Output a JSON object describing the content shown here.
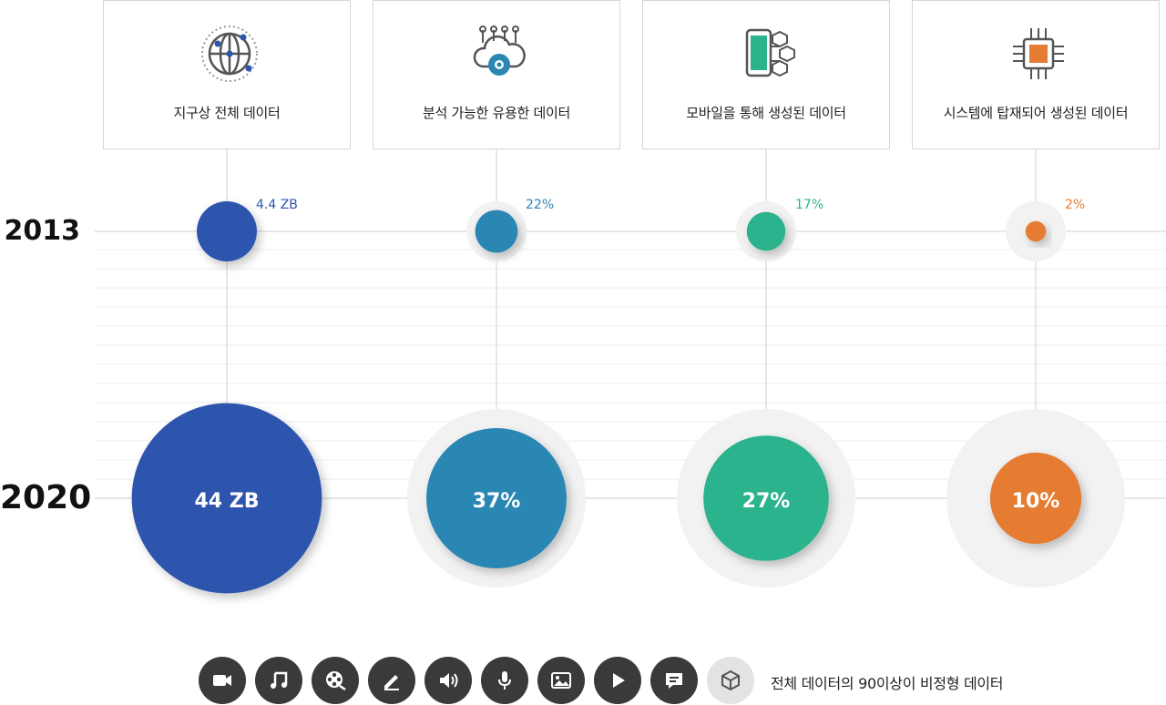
{
  "categories": [
    {
      "label": "지구상 전체 데이터",
      "icon": "globe-network-icon",
      "color": "#2d55ad",
      "v2013_label": "4.4 ZB",
      "v2020_label": "44 ZB"
    },
    {
      "label": "분석 가능한 유용한 데이터",
      "icon": "cloud-gear-icon",
      "color": "#2b86b3",
      "v2013_label": "22%",
      "v2020_label": "37%"
    },
    {
      "label": "모바일을 통해 생성된 데이터",
      "icon": "mobile-blocks-icon",
      "color": "#2bb38c",
      "v2013_label": "17%",
      "v2020_label": "27%"
    },
    {
      "label": "시스템에 탑재되어 생성된 데이터",
      "icon": "chip-icon",
      "color": "#e57c33",
      "v2013_label": "2%",
      "v2020_label": "10%"
    }
  ],
  "years": [
    "2013",
    "2020"
  ],
  "chart_data": {
    "type": "bubble",
    "categories": [
      "지구상 전체 데이터",
      "분석 가능한 유용한 데이터",
      "모바일을 통해 생성된 데이터",
      "시스템에 탑재되어 생성된 데이터"
    ],
    "series": [
      {
        "name": "2013",
        "values": [
          4.4,
          22,
          17,
          2
        ],
        "labels": [
          "4.4 ZB",
          "22%",
          "17%",
          "2%"
        ]
      },
      {
        "name": "2020",
        "values": [
          44,
          37,
          27,
          10
        ],
        "labels": [
          "44 ZB",
          "37%",
          "27%",
          "10%"
        ]
      }
    ]
  },
  "bottom_icons": [
    "video-camera-icon",
    "music-note-icon",
    "film-reel-icon",
    "pencil-icon",
    "speaker-icon",
    "microphone-icon",
    "image-icon",
    "play-icon",
    "chat-icon",
    "cube-icon"
  ],
  "footnote": "전체 데이터의 90이상이 비정형 데이터"
}
